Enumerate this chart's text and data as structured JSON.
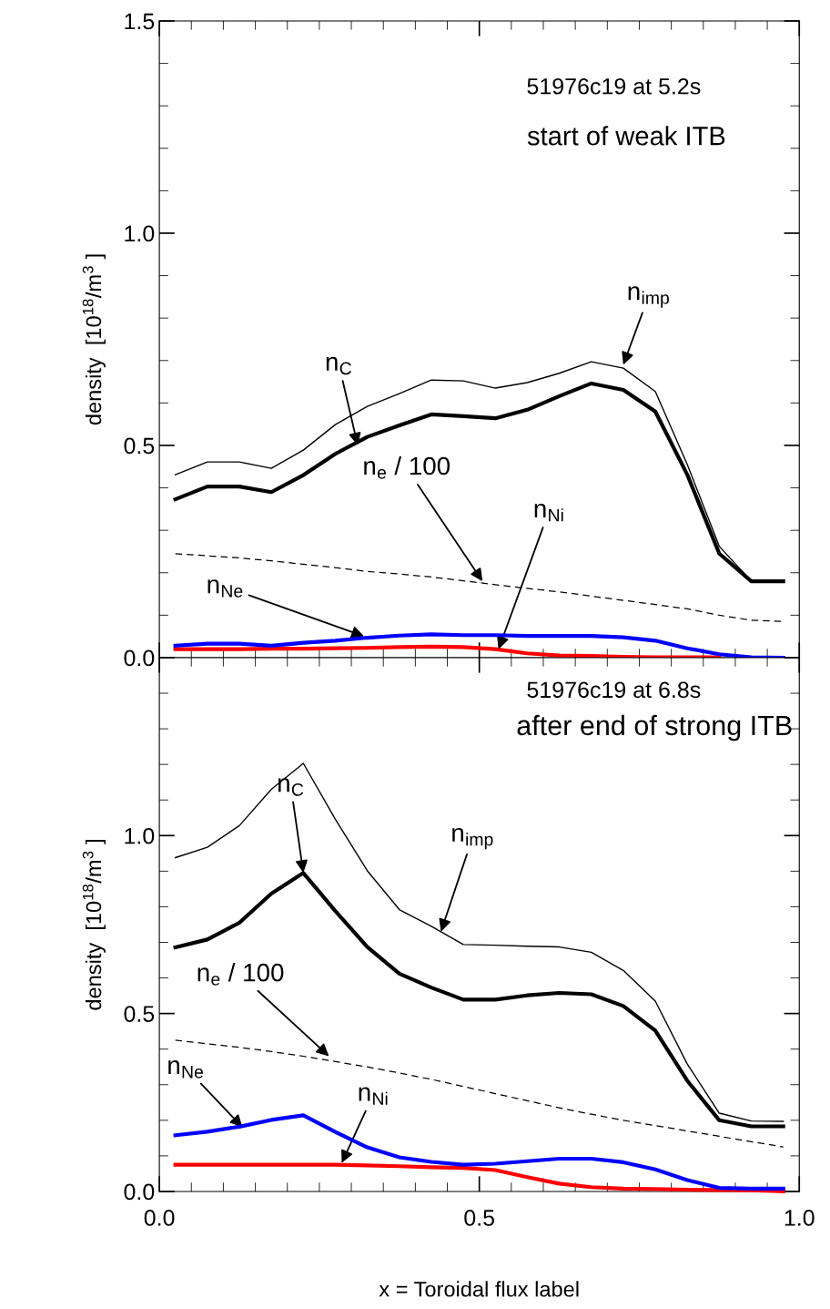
{
  "chart_data": [
    {
      "type": "line",
      "title": "51976c19 at 5.2s",
      "subtitle": "start of weak ITB",
      "ylabel": "density  [10$^{18}$/m$^{3}$ ]",
      "x": [
        0.025,
        0.075,
        0.125,
        0.175,
        0.225,
        0.275,
        0.325,
        0.375,
        0.425,
        0.475,
        0.525,
        0.575,
        0.625,
        0.675,
        0.725,
        0.775,
        0.825,
        0.875,
        0.925,
        0.975
      ],
      "xlim": [
        0,
        1
      ],
      "xticks": [
        0,
        0.5,
        1
      ],
      "ylim": [
        0,
        1.5
      ],
      "yticks": [
        {
          "value": 0,
          "label": "0.0"
        },
        {
          "value": 0.5,
          "label": "0.5"
        },
        {
          "value": 1.0,
          "label": "1.0"
        },
        {
          "value": 1.5,
          "label": "1.5"
        }
      ],
      "tick_labels": "y",
      "grid": false,
      "legend": false,
      "series": [
        {
          "color": "#000000",
          "line_style": "solid",
          "values": [
            0.431,
            0.461,
            0.461,
            0.446,
            0.489,
            0.549,
            0.592,
            0.622,
            0.654,
            0.652,
            0.635,
            0.648,
            0.67,
            0.697,
            0.682,
            0.627,
            0.455,
            0.262,
            0.18,
            0.18
          ]
        },
        {
          "color": "#000000",
          "line_style": "solid",
          "values": [
            0.373,
            0.403,
            0.403,
            0.39,
            0.43,
            0.48,
            0.52,
            0.547,
            0.573,
            0.569,
            0.564,
            0.584,
            0.616,
            0.646,
            0.631,
            0.58,
            0.431,
            0.245,
            0.18,
            0.18
          ]
        },
        {
          "color": "#000000",
          "line_style": "dashed",
          "values": [
            0.245,
            0.24,
            0.235,
            0.228,
            0.22,
            0.212,
            0.203,
            0.197,
            0.19,
            0.181,
            0.172,
            0.163,
            0.155,
            0.145,
            0.135,
            0.125,
            0.115,
            0.1,
            0.088,
            0.085
          ]
        },
        {
          "color": "#0000ff",
          "line_style": "solid",
          "values": [
            0.028,
            0.033,
            0.033,
            0.028,
            0.035,
            0.04,
            0.047,
            0.052,
            0.055,
            0.053,
            0.053,
            0.051,
            0.051,
            0.051,
            0.048,
            0.04,
            0.022,
            0.008,
            0.001,
            0.0
          ]
        },
        {
          "color": "#ff0000",
          "line_style": "solid",
          "values": [
            0.02,
            0.02,
            0.02,
            0.021,
            0.021,
            0.022,
            0.023,
            0.025,
            0.026,
            0.025,
            0.02,
            0.01,
            0.005,
            0.004,
            0.002,
            0.001,
            0.001,
            0.001,
            null,
            null
          ]
        }
      ],
      "annotations": [
        {
          "text": "n$_{imp}$",
          "x": 0.725,
          "y": 0.69
        },
        {
          "text": "n$_{C}$",
          "x": 0.31,
          "y": 0.5
        },
        {
          "text": "n$_{e}$ / 100",
          "x": 0.505,
          "y": 0.18
        },
        {
          "text": "n$_{Ni}$",
          "x": 0.53,
          "y": 0.02
        },
        {
          "text": "n$_{Ne}$",
          "x": 0.32,
          "y": 0.05
        }
      ]
    },
    {
      "type": "line",
      "title": "51976c19 at 6.8s",
      "subtitle": "after end of strong ITB",
      "ylabel": "density  [10$^{18}$/m$^{3}$ ]",
      "xlabel": "x = Toroidal flux label",
      "x": [
        0.025,
        0.075,
        0.125,
        0.175,
        0.225,
        0.275,
        0.325,
        0.375,
        0.425,
        0.475,
        0.525,
        0.575,
        0.625,
        0.675,
        0.725,
        0.775,
        0.825,
        0.875,
        0.925,
        0.975
      ],
      "xlim": [
        0,
        1
      ],
      "xticks": [
        {
          "value": 0,
          "label": "0.0"
        },
        {
          "value": 0.5,
          "label": "0.5"
        },
        {
          "value": 1.0,
          "label": "1.0"
        }
      ],
      "ylim": [
        0,
        1.5
      ],
      "yticks": [
        {
          "value": 0,
          "label": "0.0"
        },
        {
          "value": 0.5,
          "label": "0.5"
        },
        {
          "value": 1.0,
          "label": "1.0"
        },
        {
          "value": 1.5,
          "label": null
        }
      ],
      "grid": false,
      "legend": false,
      "series": [
        {
          "color": "#000000",
          "line_style": "solid",
          "values": [
            0.938,
            0.967,
            1.028,
            1.13,
            1.203,
            1.046,
            0.901,
            0.792,
            0.745,
            0.694,
            0.692,
            0.689,
            0.687,
            0.672,
            0.621,
            0.535,
            0.358,
            0.22,
            0.198,
            0.197
          ]
        },
        {
          "color": "#000000",
          "line_style": "solid",
          "values": [
            0.686,
            0.708,
            0.755,
            0.837,
            0.895,
            0.788,
            0.687,
            0.612,
            0.573,
            0.539,
            0.539,
            0.551,
            0.558,
            0.554,
            0.521,
            0.452,
            0.311,
            0.2,
            0.183,
            0.183
          ]
        },
        {
          "color": "#000000",
          "line_style": "dashed",
          "values": [
            0.425,
            0.415,
            0.405,
            0.393,
            0.38,
            0.365,
            0.35,
            0.333,
            0.315,
            0.295,
            0.275,
            0.255,
            0.235,
            0.217,
            0.2,
            0.185,
            0.17,
            0.155,
            0.14,
            0.125
          ]
        },
        {
          "color": "#0000ff",
          "line_style": "solid",
          "values": [
            0.158,
            0.168,
            0.182,
            0.201,
            0.214,
            0.167,
            0.124,
            0.096,
            0.083,
            0.075,
            0.078,
            0.085,
            0.092,
            0.092,
            0.082,
            0.062,
            0.032,
            0.01,
            0.008,
            0.008
          ]
        },
        {
          "color": "#ff0000",
          "line_style": "solid",
          "values": [
            0.075,
            0.075,
            0.075,
            0.075,
            0.075,
            0.075,
            0.073,
            0.071,
            0.068,
            0.066,
            0.06,
            0.04,
            0.022,
            0.012,
            0.008,
            0.007,
            0.005,
            0.004,
            0.003,
            0.0
          ]
        }
      ],
      "annotations": [
        {
          "text": "n$_{C}$",
          "x": 0.225,
          "y": 0.895
        },
        {
          "text": "n$_{imp}$",
          "x": 0.44,
          "y": 0.73
        },
        {
          "text": "n$_{e}$ / 100",
          "x": 0.265,
          "y": 0.38
        },
        {
          "text": "n$_{Ne}$",
          "x": 0.13,
          "y": 0.18
        },
        {
          "text": "n$_{Ni}$",
          "x": 0.285,
          "y": 0.08
        }
      ]
    }
  ]
}
